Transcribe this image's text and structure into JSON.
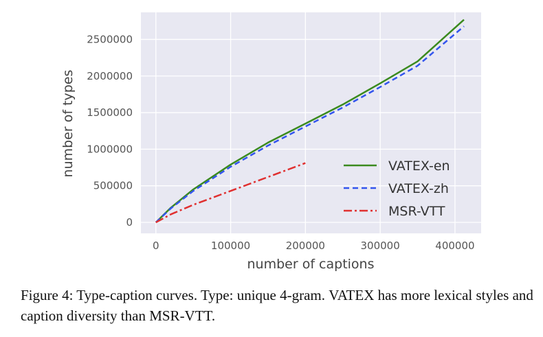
{
  "chart_data": {
    "type": "line",
    "title": "",
    "xlabel": "number of captions",
    "ylabel": "number of types",
    "xlim": [
      -20000,
      435000
    ],
    "ylim": [
      -150000,
      2870000
    ],
    "xticks": [
      0,
      100000,
      200000,
      300000,
      400000
    ],
    "xtick_labels": [
      "0",
      "100000",
      "200000",
      "300000",
      "400000"
    ],
    "yticks": [
      0,
      500000,
      1000000,
      1500000,
      2000000,
      2500000
    ],
    "ytick_labels": [
      "0",
      "500000",
      "1000000",
      "1500000",
      "2000000",
      "2500000"
    ],
    "grid": true,
    "legend_position": "lower-right",
    "series": [
      {
        "name": "VATEX-en",
        "color": "#3a8a1e",
        "style": "solid",
        "x": [
          0,
          20000,
          50000,
          100000,
          150000,
          200000,
          250000,
          300000,
          350000,
          412000
        ],
        "y": [
          0,
          200000,
          450000,
          790000,
          1090000,
          1350000,
          1610000,
          1900000,
          2200000,
          2770000
        ]
      },
      {
        "name": "VATEX-zh",
        "color": "#3355ee",
        "style": "dashed",
        "x": [
          0,
          20000,
          50000,
          100000,
          150000,
          200000,
          250000,
          300000,
          350000,
          412000
        ],
        "y": [
          0,
          190000,
          430000,
          760000,
          1050000,
          1310000,
          1570000,
          1850000,
          2140000,
          2680000
        ]
      },
      {
        "name": "MSR-VTT",
        "color": "#e03030",
        "style": "dashdot",
        "x": [
          0,
          20000,
          50000,
          100000,
          150000,
          200000
        ],
        "y": [
          0,
          110000,
          240000,
          430000,
          620000,
          810000
        ]
      }
    ]
  },
  "caption": {
    "prefix": "Figure 4: Type-caption curves. Type: unique 4-gram. ",
    "brand": "VATEX",
    "suffix": " has more lexical styles and caption diversity than MSR-VTT."
  }
}
